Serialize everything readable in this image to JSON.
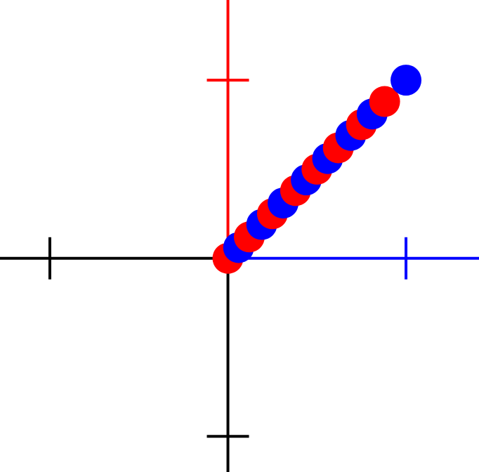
{
  "colors": {
    "background": "#ffffff",
    "negative_axis": "#000000",
    "positive_x_axis": "#0000ff",
    "positive_y_axis": "#ff0000",
    "dot_a": "#ff0000",
    "dot_b": "#0000ff"
  },
  "chart_data": {
    "type": "scatter",
    "xlim": [
      -1.28,
      1.41
    ],
    "ylim": [
      -1.2,
      1.45
    ],
    "x_ticks": [
      -1,
      1
    ],
    "y_ticks": [
      -1,
      1
    ],
    "grid": false,
    "series": [
      {
        "color": "#ff0000",
        "x": [
          0.0,
          0.12,
          0.25,
          0.38,
          0.5,
          0.62,
          0.75,
          0.88
        ],
        "y": [
          0.0,
          0.12,
          0.25,
          0.38,
          0.5,
          0.62,
          0.75,
          0.88
        ]
      },
      {
        "color": "#0000ff",
        "x": [
          0.06,
          0.19,
          0.31,
          0.44,
          0.56,
          0.69,
          0.81,
          1.0
        ],
        "y": [
          0.06,
          0.19,
          0.31,
          0.44,
          0.56,
          0.69,
          0.81,
          1.0
        ]
      }
    ]
  }
}
